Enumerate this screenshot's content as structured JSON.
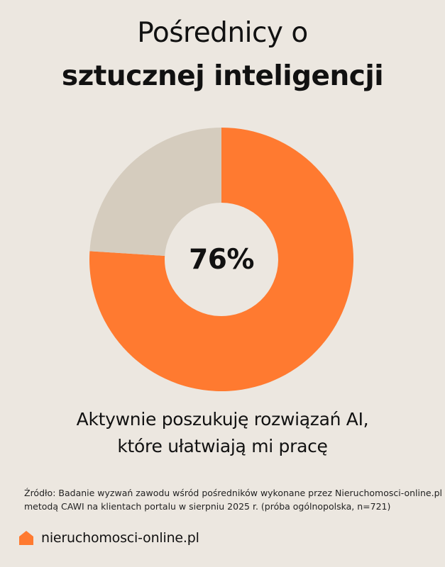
{
  "title": {
    "line1": "Pośrednicy o",
    "line2": "sztucznej inteligencji"
  },
  "chart_data": {
    "type": "pie",
    "variant": "donut",
    "slices": [
      {
        "label": "Aktywnie poszukuję rozwiązań AI, które ułatwiają mi pracę",
        "value": 76,
        "color": "#FF7A30"
      },
      {
        "label": "",
        "value": 24,
        "color": "#D5CCBE"
      }
    ],
    "center_label": "76%"
  },
  "caption": {
    "line1": "Aktywnie poszukuję rozwiązań AI,",
    "line2": "które ułatwiają mi pracę"
  },
  "source": {
    "line1": "Źródło: Badanie wyzwań zawodu wśród pośredników wykonane przez Nieruchomosci-online.pl",
    "line2": "metodą CAWI na klientach portalu w sierpniu 2025 r. (próba ogólnopolska, n=721)"
  },
  "brand": {
    "name": "nieruchomosci-online.pl",
    "icon": "house-icon",
    "color": "#FF7A30"
  }
}
